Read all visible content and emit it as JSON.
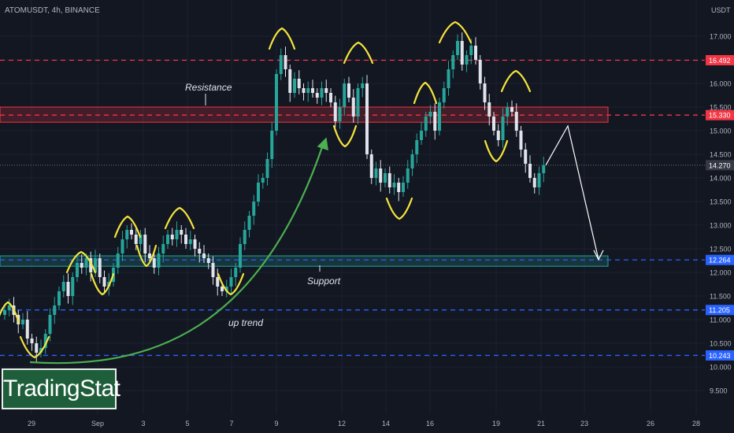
{
  "header": {
    "symbol": "ATOMUSDT, 4h, BINANCE",
    "quote_unit": "USDT"
  },
  "watermark": {
    "text": "TradingStat"
  },
  "colors": {
    "background": "#131722",
    "bull": "#26a69a",
    "bear": "#e0e3eb",
    "resistance": "#f23645",
    "support": "#2962ff",
    "highlight": "#f5e53c",
    "trend": "#4caf50",
    "projection": "#ffffff"
  },
  "chart_data": {
    "type": "candlestick",
    "title": "",
    "ylim": [
      9.2,
      17.6
    ],
    "y_ticks": [
      9.5,
      10.0,
      10.5,
      11.0,
      11.5,
      12.0,
      12.5,
      13.0,
      13.5,
      14.0,
      14.5,
      15.0,
      15.5,
      16.0,
      16.5,
      17.0
    ],
    "x_ticks": [
      "29",
      "Sep",
      "3",
      "5",
      "7",
      "9",
      "12",
      "14",
      "16",
      "19",
      "21",
      "23",
      "26",
      "28"
    ],
    "horizontal_levels": [
      {
        "value": 16.492,
        "label": "16.492",
        "color": "#f23645"
      },
      {
        "value": 15.33,
        "label": "15.330",
        "color": "#f23645"
      },
      {
        "value": 14.27,
        "label": "14.270",
        "color": "#787b86"
      },
      {
        "value": 12.264,
        "label": "12.264",
        "color": "#2962ff"
      },
      {
        "value": 11.205,
        "label": "11.205",
        "color": "#2962ff"
      },
      {
        "value": 10.243,
        "label": "10.243",
        "color": "#2962ff"
      }
    ],
    "zones": [
      {
        "name": "Resistance",
        "low": 15.18,
        "high": 15.5,
        "color": "#f23645"
      },
      {
        "name": "Support",
        "low": 12.13,
        "high": 12.35,
        "color": "#26a69a"
      }
    ],
    "annotations": [
      {
        "text": "Resistance"
      },
      {
        "text": "Support"
      },
      {
        "text": "up trend"
      }
    ],
    "price_path": [
      11.2,
      11.3,
      11.1,
      10.9,
      11.0,
      10.6,
      10.5,
      10.3,
      10.4,
      10.7,
      11.1,
      11.3,
      11.6,
      11.8,
      11.5,
      11.9,
      12.2,
      12.1,
      12.3,
      12.0,
      12.3,
      11.9,
      11.7,
      11.8,
      12.1,
      12.4,
      12.7,
      12.9,
      12.8,
      12.6,
      12.8,
      12.4,
      12.3,
      12.1,
      12.4,
      12.6,
      12.8,
      12.7,
      12.9,
      12.8,
      12.6,
      12.7,
      12.5,
      12.4,
      12.3,
      12.2,
      11.9,
      11.7,
      11.6,
      11.7,
      11.9,
      12.1,
      12.6,
      12.9,
      13.2,
      13.5,
      13.9,
      14.0,
      14.4,
      15.0,
      16.2,
      16.6,
      16.3,
      15.8,
      16.1,
      15.9,
      15.8,
      15.9,
      15.8,
      15.7,
      15.9,
      15.8,
      15.6,
      15.2,
      15.5,
      16.0,
      15.7,
      15.3,
      15.9,
      16.0,
      14.5,
      14.0,
      14.2,
      13.9,
      14.1,
      13.8,
      13.9,
      13.7,
      13.9,
      14.2,
      14.5,
      14.8,
      15.0,
      15.3,
      15.4,
      15.0,
      15.6,
      15.9,
      16.3,
      16.6,
      16.9,
      16.4,
      16.6,
      16.8,
      16.5,
      16.0,
      15.6,
      15.3,
      15.0,
      14.8,
      15.3,
      15.5,
      15.4,
      15.0,
      14.6,
      14.3,
      14.0,
      13.8,
      14.1,
      14.27
    ],
    "projection_path": [
      14.27,
      15.1,
      12.27
    ]
  }
}
